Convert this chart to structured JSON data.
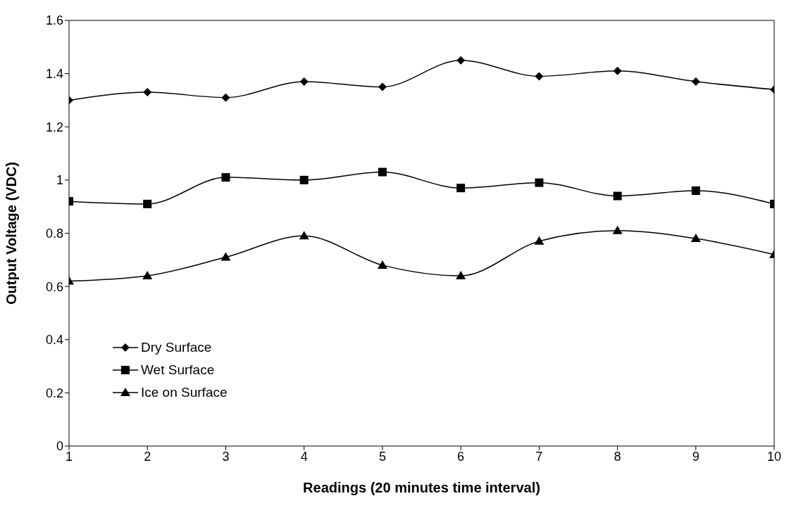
{
  "chart_data": {
    "type": "line",
    "xlabel": "Readings (20 minutes time interval)",
    "ylabel": "Output Voltage (VDC)",
    "x": [
      1,
      2,
      3,
      4,
      5,
      6,
      7,
      8,
      9,
      10
    ],
    "series": [
      {
        "name": "Dry Surface",
        "color": "#000000",
        "marker": "diamond",
        "values": [
          1.3,
          1.33,
          1.31,
          1.37,
          1.35,
          1.45,
          1.39,
          1.41,
          1.37,
          1.34
        ]
      },
      {
        "name": "Wet Surface",
        "color": "#000000",
        "marker": "square",
        "values": [
          0.92,
          0.91,
          1.01,
          1.0,
          1.03,
          0.97,
          0.99,
          0.94,
          0.96,
          0.91
        ]
      },
      {
        "name": "Ice on Surface",
        "color": "#000000",
        "marker": "triangle",
        "values": [
          0.62,
          0.64,
          0.71,
          0.79,
          0.68,
          0.64,
          0.77,
          0.81,
          0.78,
          0.72
        ]
      }
    ],
    "xlim": [
      1,
      10
    ],
    "xticks": [
      1,
      2,
      3,
      4,
      5,
      6,
      7,
      8,
      9,
      10
    ],
    "ylim": [
      0,
      1.6
    ],
    "yticks": [
      0,
      0.2,
      0.4,
      0.6,
      0.8,
      1,
      1.2,
      1.4,
      1.6
    ],
    "grid": false,
    "legend": "bottom left",
    "line_style": "solid"
  }
}
